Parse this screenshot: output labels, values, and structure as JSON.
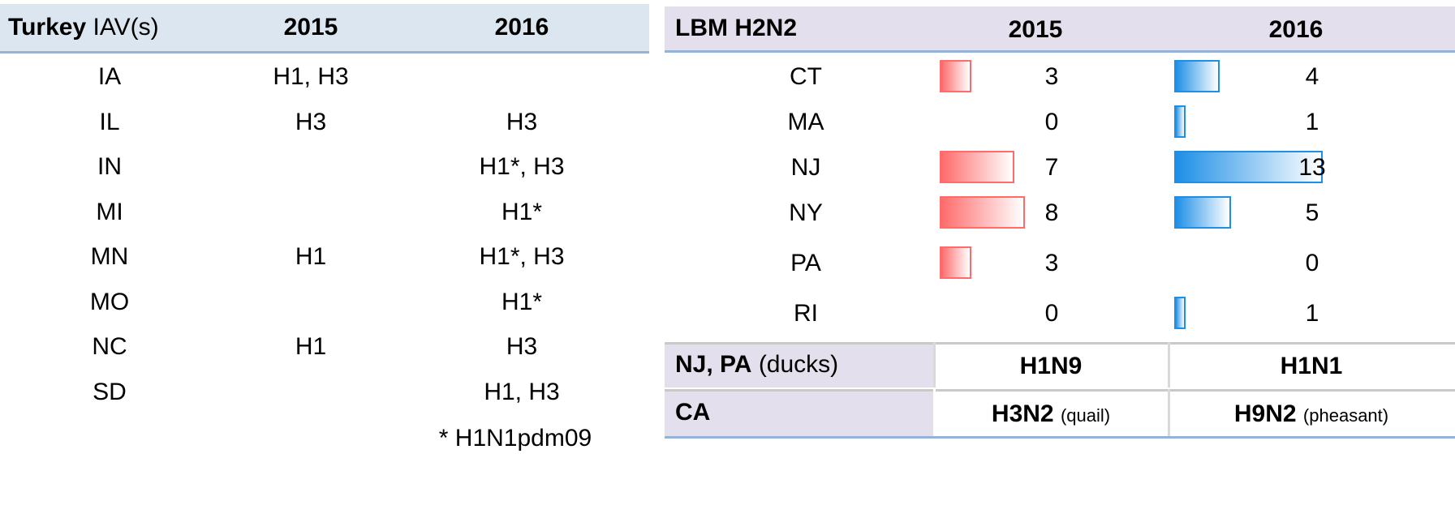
{
  "left_table": {
    "header": {
      "title_bold": "Turkey",
      "title_rest": "IAV(s)",
      "columns": [
        "2015",
        "2016"
      ]
    },
    "rows": [
      [
        "IA",
        "H1, H3",
        null
      ],
      [
        "IL",
        "H3",
        "H3"
      ],
      [
        "IN",
        null,
        "H1*, H3"
      ],
      [
        "MI",
        null,
        "H1*"
      ],
      [
        "MN",
        "H1",
        "H1*, H3"
      ],
      [
        "MO",
        null,
        "H1*"
      ],
      [
        "NC",
        "H1",
        "H3"
      ],
      [
        "SD",
        null,
        "H1, H3"
      ]
    ],
    "footnote": "* H1N1pdm09"
  },
  "right_table": {
    "header": {
      "title": "LBM H2N2",
      "columns": [
        "2015",
        "2016"
      ]
    },
    "rows": [
      {
        "state": "CT",
        "values": [
          3,
          4
        ]
      },
      {
        "state": "MA",
        "values": [
          0,
          1
        ]
      },
      {
        "state": "NJ",
        "values": [
          7,
          13
        ]
      },
      {
        "state": "NY",
        "values": [
          8,
          5
        ]
      },
      {
        "state": "PA",
        "values": [
          3,
          0
        ]
      },
      {
        "state": "RI",
        "values": [
          0,
          1
        ]
      }
    ],
    "extra_rows": [
      {
        "label_bold": "NJ, PA",
        "label_rest": "(ducks)",
        "cells": [
          {
            "bold": "H1N9"
          },
          {
            "bold": "H1N1"
          }
        ]
      },
      {
        "label_bold": "CA",
        "cells": [
          {
            "bold": "H3N2",
            "rest": "(quail)"
          },
          {
            "bold": "H9N2",
            "rest": "(pheasant)"
          }
        ]
      }
    ]
  }
}
